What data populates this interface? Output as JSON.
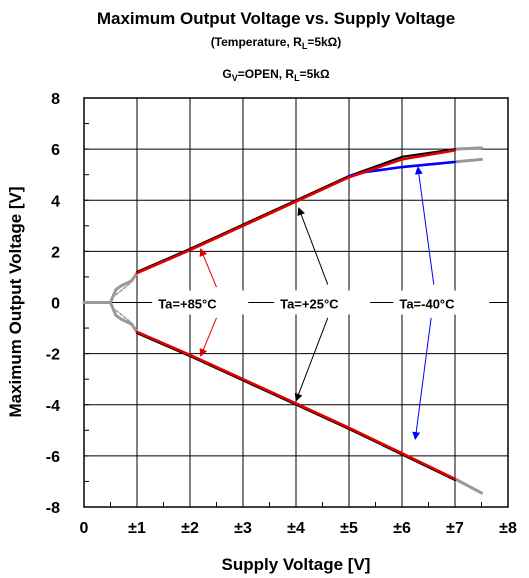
{
  "chart_data": {
    "type": "line",
    "title": "Maximum Output Voltage vs. Supply Voltage",
    "subtitle": "(Temperature, RL=5kΩ)",
    "condition": "GV=OPEN, RL=5kΩ",
    "xlabel": "Supply Voltage [V]",
    "ylabel": "Maximum Output Voltage [V]",
    "xlim": [
      0,
      8
    ],
    "ylim": [
      -8,
      8
    ],
    "xticks": [
      0,
      1,
      2,
      3,
      4,
      5,
      6,
      7,
      8
    ],
    "xtick_labels": [
      "0",
      "±1",
      "±2",
      "±3",
      "±4",
      "±5",
      "±6",
      "±7",
      "±8"
    ],
    "yticks": [
      8,
      6,
      4,
      2,
      0,
      -2,
      -4,
      -6,
      -8
    ],
    "ytick_labels": [
      "8",
      "6",
      "4",
      "2",
      "0",
      "-2",
      "-4",
      "-6",
      "-8"
    ],
    "grid": true,
    "series": [
      {
        "name": "Ta=+85°C",
        "color": "#e00000",
        "positive": [
          [
            1.0,
            1.15
          ],
          [
            2.0,
            2.05
          ],
          [
            3.0,
            3.0
          ],
          [
            4.0,
            3.95
          ],
          [
            5.0,
            4.9
          ],
          [
            6.0,
            5.6
          ],
          [
            7.0,
            5.95
          ]
        ],
        "negative": [
          [
            1.0,
            -1.15
          ],
          [
            2.0,
            -2.05
          ],
          [
            3.0,
            -3.0
          ],
          [
            4.0,
            -3.95
          ],
          [
            5.0,
            -4.9
          ],
          [
            6.0,
            -5.9
          ],
          [
            7.0,
            -6.9
          ]
        ]
      },
      {
        "name": "Ta=+25°C",
        "color": "#000000",
        "positive": [
          [
            1.0,
            1.2
          ],
          [
            2.0,
            2.1
          ],
          [
            3.0,
            3.05
          ],
          [
            4.0,
            4.0
          ],
          [
            5.0,
            4.95
          ],
          [
            6.0,
            5.7
          ],
          [
            7.0,
            6.0
          ]
        ],
        "negative": [
          [
            1.0,
            -1.2
          ],
          [
            2.0,
            -2.1
          ],
          [
            3.0,
            -3.05
          ],
          [
            4.0,
            -4.0
          ],
          [
            5.0,
            -4.95
          ],
          [
            6.0,
            -5.95
          ],
          [
            7.0,
            -6.95
          ]
        ]
      },
      {
        "name": "Ta=-40°C",
        "color": "#0000ff",
        "positive": [
          [
            5.0,
            4.95
          ],
          [
            5.3,
            5.1
          ],
          [
            6.0,
            5.3
          ],
          [
            7.0,
            5.5
          ]
        ],
        "negative": []
      }
    ],
    "low_voltage_region": {
      "color": "#999999",
      "positive": [
        [
          0,
          0
        ],
        [
          0.5,
          0
        ],
        [
          0.6,
          0.5
        ],
        [
          0.7,
          0.65
        ],
        [
          0.9,
          0.85
        ],
        [
          1.0,
          1.15
        ]
      ],
      "negative": [
        [
          0,
          0
        ],
        [
          0.5,
          0
        ],
        [
          0.6,
          -0.5
        ],
        [
          0.7,
          -0.65
        ],
        [
          0.9,
          -0.85
        ],
        [
          1.0,
          -1.15
        ]
      ],
      "pos_end": [
        [
          7.0,
          6.0
        ],
        [
          7.5,
          6.05
        ]
      ],
      "pos_end2": [
        [
          7.0,
          5.5
        ],
        [
          7.5,
          5.6
        ]
      ],
      "neg_end": [
        [
          7.0,
          -6.9
        ],
        [
          7.5,
          -7.45
        ]
      ]
    },
    "annotations": [
      {
        "text": "Ta=+85°C",
        "x": 1.4,
        "y": 0,
        "color": "#e00000"
      },
      {
        "text": "Ta=+25°C",
        "x": 3.7,
        "y": 0,
        "color": "#000000"
      },
      {
        "text": "Ta=-40°C",
        "x": 5.95,
        "y": 0,
        "color": "#0000ff"
      }
    ]
  }
}
